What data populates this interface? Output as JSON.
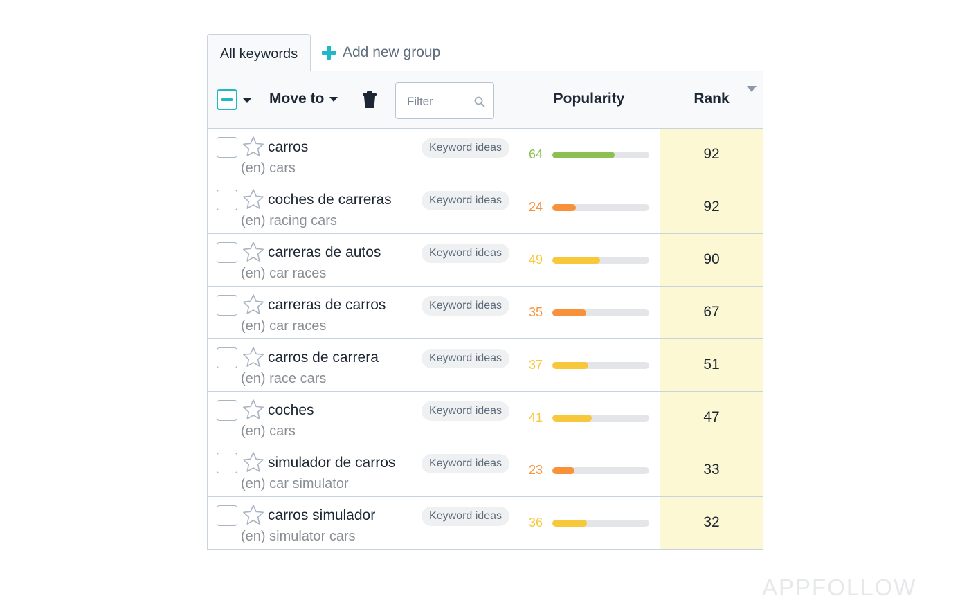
{
  "tabs": {
    "active_label": "All keywords",
    "add_group_label": "Add new group"
  },
  "toolbar": {
    "move_to_label": "Move to",
    "filter_placeholder": "Filter"
  },
  "columns": {
    "popularity": "Popularity",
    "rank": "Rank"
  },
  "keyword_ideas_label": "Keyword ideas",
  "colors": {
    "accent": "#20b8c4",
    "pop_high": "#8cc152",
    "pop_mid": "#f8c83c",
    "pop_low": "#f8913a",
    "rank_bg": "#fdf8d4"
  },
  "rows": [
    {
      "keyword": "carros",
      "translation": "(en) cars",
      "popularity": 64,
      "popularity_level": "high",
      "rank": 92,
      "starred": false,
      "checked": false
    },
    {
      "keyword": "coches de carreras",
      "translation": "(en) racing cars",
      "popularity": 24,
      "popularity_level": "low",
      "rank": 92,
      "starred": false,
      "checked": false
    },
    {
      "keyword": "carreras de autos",
      "translation": "(en) car races",
      "popularity": 49,
      "popularity_level": "mid",
      "rank": 90,
      "starred": false,
      "checked": false
    },
    {
      "keyword": "carreras de carros",
      "translation": "(en) car races",
      "popularity": 35,
      "popularity_level": "low",
      "rank": 67,
      "starred": false,
      "checked": false
    },
    {
      "keyword": "carros de carrera",
      "translation": "(en) race cars",
      "popularity": 37,
      "popularity_level": "mid",
      "rank": 51,
      "starred": false,
      "checked": false
    },
    {
      "keyword": "coches",
      "translation": "(en) cars",
      "popularity": 41,
      "popularity_level": "mid",
      "rank": 47,
      "starred": false,
      "checked": false
    },
    {
      "keyword": "simulador de carros",
      "translation": "(en) car simulator",
      "popularity": 23,
      "popularity_level": "low",
      "rank": 33,
      "starred": false,
      "checked": false
    },
    {
      "keyword": "carros simulador",
      "translation": "(en) simulator cars",
      "popularity": 36,
      "popularity_level": "mid",
      "rank": 32,
      "starred": false,
      "checked": false
    }
  ],
  "watermark": "APPFOLLOW"
}
